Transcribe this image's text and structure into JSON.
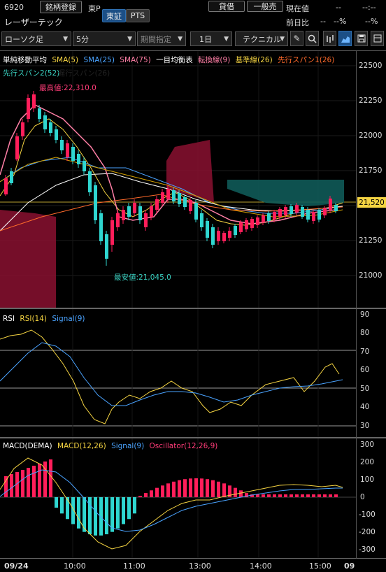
{
  "header": {
    "code": "6920",
    "register_label": "銘柄登録",
    "exchange_code": "東P",
    "name": "レーザーテック",
    "tabs": [
      "東証",
      "PTS"
    ],
    "lend_label": "貸借",
    "general_label": "一般売",
    "current_label": "現在値",
    "current_value": "--",
    "time_value": "--:--",
    "prev_label": "前日比",
    "prev_value": "--",
    "prev_pct": "--%",
    "extra_pct": "--%"
  },
  "toolbar": {
    "chart_type": "ローソク足",
    "interval": "5分",
    "period": "期間指定",
    "range": "1日",
    "technical": "テクニカル",
    "icons": [
      "pencil-icon",
      "zoom-icon",
      "bar-chart-icon",
      "area-chart-icon",
      "save-icon",
      "panel-icon"
    ]
  },
  "main_chart": {
    "legend": [
      {
        "text": "単純移動平均",
        "color": "#ffffff"
      },
      {
        "text": "SMA(5)",
        "color": "#f5d442"
      },
      {
        "text": "SMA(25)",
        "color": "#4aa3ff"
      },
      {
        "text": "SMA(75)",
        "color": "#ff7fa6"
      },
      {
        "text": "一目均衡表",
        "color": "#ffffff"
      },
      {
        "text": "転換線(9)",
        "color": "#ff7fa6"
      },
      {
        "text": "基準線(26)",
        "color": "#f5d442"
      },
      {
        "text": "先行スパン1(26)",
        "color": "#ff6a2a"
      }
    ],
    "legend2": [
      {
        "text": "先行スパン2(52)",
        "color": "#39d0c0"
      },
      {
        "text": "遅行スパン(26)",
        "color": "#111111"
      }
    ],
    "high_label": "最高値:22,310.0",
    "low_label": "最安値:21,045.0",
    "current_tag": "21,520",
    "y_ticks": [
      "22500",
      "22250",
      "22000",
      "21750",
      "21500",
      "21250",
      "21000"
    ],
    "colors": {
      "up": "#ff1e5a",
      "down": "#2fd6d0",
      "cloud_up": "#8a1030",
      "cloud_down": "#0f5a58"
    }
  },
  "rsi": {
    "legend": [
      {
        "text": "RSI",
        "color": "#ffffff"
      },
      {
        "text": "RSI(14)",
        "color": "#f5d442"
      },
      {
        "text": "Signal(9)",
        "color": "#4aa3ff"
      }
    ],
    "y_ticks": [
      "90",
      "80",
      "70",
      "60",
      "50",
      "40",
      "30"
    ]
  },
  "macd": {
    "legend": [
      {
        "text": "MACD(DEMA)",
        "color": "#ffffff"
      },
      {
        "text": "MACD(12,26)",
        "color": "#f5d442"
      },
      {
        "text": "Signal(9)",
        "color": "#4aa3ff"
      },
      {
        "text": "Oscillator(12,26,9)",
        "color": "#ff3c78"
      }
    ],
    "y_ticks": [
      "300",
      "200",
      "100",
      "0",
      "-100",
      "-200",
      "-300"
    ]
  },
  "x_axis": {
    "labels": [
      "09/24",
      "10:00",
      "11:00",
      "13:00",
      "14:00",
      "15:00",
      "09"
    ]
  }
}
